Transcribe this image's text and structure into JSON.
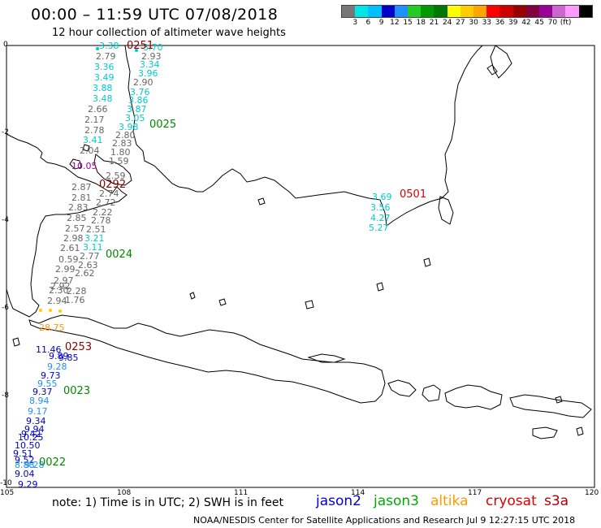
{
  "header": {
    "title": "00:00 – 11:59 UTC 07/08/2018",
    "subtitle": "12 hour collection of altimeter wave heights"
  },
  "colorbar": {
    "colors": [
      "#777777",
      "#00e5e5",
      "#00bfff",
      "#0000cc",
      "#1e90ff",
      "#22cc22",
      "#009900",
      "#007700",
      "#ffff00",
      "#ffcc00",
      "#ffa500",
      "#ff0000",
      "#cc0000",
      "#990000",
      "#800040",
      "#990099",
      "#cc66cc",
      "#ff99ff",
      "#000000"
    ],
    "labels": [
      "3",
      "6",
      "9",
      "12",
      "15",
      "18",
      "21",
      "24",
      "27",
      "30",
      "33",
      "36",
      "39",
      "42",
      "45",
      "70",
      "(ft)"
    ]
  },
  "axes": {
    "y_ticks": [
      "0",
      "-2",
      "-4",
      "-6",
      "-8",
      "-10"
    ],
    "x_ticks": [
      "105",
      "108",
      "111",
      "114",
      "117",
      "120"
    ]
  },
  "track_labels": [
    {
      "text": "0251",
      "color": "#880000"
    },
    {
      "text": "0025",
      "color": "#008800"
    },
    {
      "text": "0292",
      "color": "#880000"
    },
    {
      "text": "0501",
      "color": "#dd0000"
    },
    {
      "text": "0024",
      "color": "#008800"
    },
    {
      "text": "0253",
      "color": "#880000"
    },
    {
      "text": "0023",
      "color": "#008800"
    },
    {
      "text": "0022",
      "color": "#008800"
    }
  ],
  "points": [
    {
      "text": "3.38",
      "color": "#00cccc"
    },
    {
      "text": "2.79",
      "color": "#666666"
    },
    {
      "text": "3.36",
      "color": "#00cccc"
    },
    {
      "text": "3.49",
      "color": "#00cccc"
    },
    {
      "text": "3.88",
      "color": "#00cccc"
    },
    {
      "text": "3.48",
      "color": "#00cccc"
    },
    {
      "text": "2.66",
      "color": "#666666"
    },
    {
      "text": "2.17",
      "color": "#666666"
    },
    {
      "text": "2.78",
      "color": "#666666"
    },
    {
      "text": "3.41",
      "color": "#00cccc"
    },
    {
      "text": "2.04",
      "color": "#666666"
    },
    {
      "text": "10.05",
      "color": "#990099"
    },
    {
      "text": "3.70",
      "color": "#00cccc"
    },
    {
      "text": "2.93",
      "color": "#666666"
    },
    {
      "text": "3.34",
      "color": "#00cccc"
    },
    {
      "text": "3.96",
      "color": "#00cccc"
    },
    {
      "text": "2.90",
      "color": "#666666"
    },
    {
      "text": "3.76",
      "color": "#00cccc"
    },
    {
      "text": "3.86",
      "color": "#00cccc"
    },
    {
      "text": "3.87",
      "color": "#00cccc"
    },
    {
      "text": "3.05",
      "color": "#00cccc"
    },
    {
      "text": "3.98",
      "color": "#00cccc"
    },
    {
      "text": "2.80",
      "color": "#666666"
    },
    {
      "text": "2.83",
      "color": "#666666"
    },
    {
      "text": "1.80",
      "color": "#666666"
    },
    {
      "text": "1.59",
      "color": "#666666"
    },
    {
      "text": "2.59",
      "color": "#666666"
    },
    {
      "text": "2.74",
      "color": "#666666"
    },
    {
      "text": "2.87",
      "color": "#666666"
    },
    {
      "text": "2.81",
      "color": "#666666"
    },
    {
      "text": "2.72",
      "color": "#666666"
    },
    {
      "text": "2.83",
      "color": "#666666"
    },
    {
      "text": "2.22",
      "color": "#666666"
    },
    {
      "text": "2.85",
      "color": "#666666"
    },
    {
      "text": "2.78",
      "color": "#666666"
    },
    {
      "text": "2.57",
      "color": "#666666"
    },
    {
      "text": "2.51",
      "color": "#666666"
    },
    {
      "text": "2.98",
      "color": "#666666"
    },
    {
      "text": "3.21",
      "color": "#00cccc"
    },
    {
      "text": "2.61",
      "color": "#666666"
    },
    {
      "text": "3.11",
      "color": "#00cccc"
    },
    {
      "text": "0.59",
      "color": "#666666"
    },
    {
      "text": "2.77",
      "color": "#666666"
    },
    {
      "text": "2.99",
      "color": "#666666"
    },
    {
      "text": "2.63",
      "color": "#666666"
    },
    {
      "text": "2.97",
      "color": "#666666"
    },
    {
      "text": "2.62",
      "color": "#666666"
    },
    {
      "text": "2.92",
      "color": "#666666"
    },
    {
      "text": "2.30",
      "color": "#666666"
    },
    {
      "text": "2.28",
      "color": "#666666"
    },
    {
      "text": "2.94",
      "color": "#666666"
    },
    {
      "text": "1.76",
      "color": "#666666"
    },
    {
      "text": "28.75",
      "color": "#ff9900"
    },
    {
      "text": "3.69",
      "color": "#00cccc"
    },
    {
      "text": "3.56",
      "color": "#00cccc"
    },
    {
      "text": "4.27",
      "color": "#00cccc"
    },
    {
      "text": "5.27",
      "color": "#00cccc"
    },
    {
      "text": "11.46",
      "color": "#0000cc"
    },
    {
      "text": "9.89",
      "color": "#0000cc"
    },
    {
      "text": "9.85",
      "color": "#0000cc"
    },
    {
      "text": "9.28",
      "color": "#1e90ff"
    },
    {
      "text": "9.73",
      "color": "#0000cc"
    },
    {
      "text": "9.55",
      "color": "#1e90ff"
    },
    {
      "text": "9.37",
      "color": "#0000cc"
    },
    {
      "text": "8.94",
      "color": "#1e90ff"
    },
    {
      "text": "9.17",
      "color": "#1e90ff"
    },
    {
      "text": "9.34",
      "color": "#0000cc"
    },
    {
      "text": "9.94",
      "color": "#0000cc"
    },
    {
      "text": "9.42",
      "color": "#0000cc"
    },
    {
      "text": "10.25",
      "color": "#0000cc"
    },
    {
      "text": "10.50",
      "color": "#0000cc"
    },
    {
      "text": "9.51",
      "color": "#0000cc"
    },
    {
      "text": "9.52",
      "color": "#0000cc"
    },
    {
      "text": "8.88",
      "color": "#1e90ff"
    },
    {
      "text": "9.28",
      "color": "#1e90ff"
    },
    {
      "text": "9.04",
      "color": "#0000cc"
    },
    {
      "text": "9.29",
      "color": "#0000cc"
    }
  ],
  "footer": {
    "note": "note:  1) Time is in UTC;  2) SWH is in feet",
    "legend": [
      {
        "text": "jason2",
        "color": "#0000dd"
      },
      {
        "text": "jason3",
        "color": "#00aa00"
      },
      {
        "text": "altika",
        "color": "#ff9900"
      },
      {
        "text": "cryosat",
        "color": "#dd0000"
      },
      {
        "text": "s3a",
        "color": "#aa0000"
      }
    ],
    "credit": "NOAA/NESDIS Center for Satellite Applications and Research    Jul  9 12:27:15 UTC 2018"
  }
}
